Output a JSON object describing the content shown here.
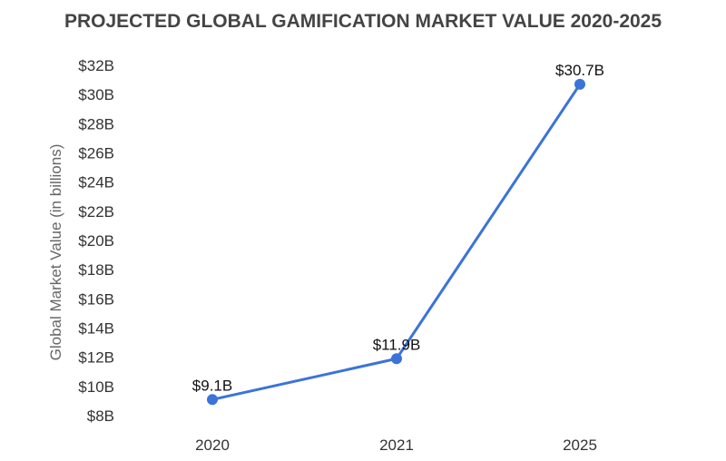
{
  "chart_data": {
    "type": "line",
    "title": "PROJECTED GLOBAL GAMIFICATION MARKET VALUE 2020-2025",
    "xlabel": "",
    "ylabel": "Global Market Value (in billions)",
    "categories": [
      "2020",
      "2021",
      "2025"
    ],
    "values": [
      9.1,
      11.9,
      30.7
    ],
    "data_labels": [
      "$9.1B",
      "$11.9B",
      "$30.7B"
    ],
    "ylim": [
      8,
      32
    ],
    "y_ticks": [
      "$8B",
      "$10B",
      "$12B",
      "$14B",
      "$16B",
      "$18B",
      "$20B",
      "$22B",
      "$24B",
      "$26B",
      "$28B",
      "$30B",
      "$32B"
    ],
    "grid": false,
    "legend": "none",
    "color": "#3b73d9"
  }
}
